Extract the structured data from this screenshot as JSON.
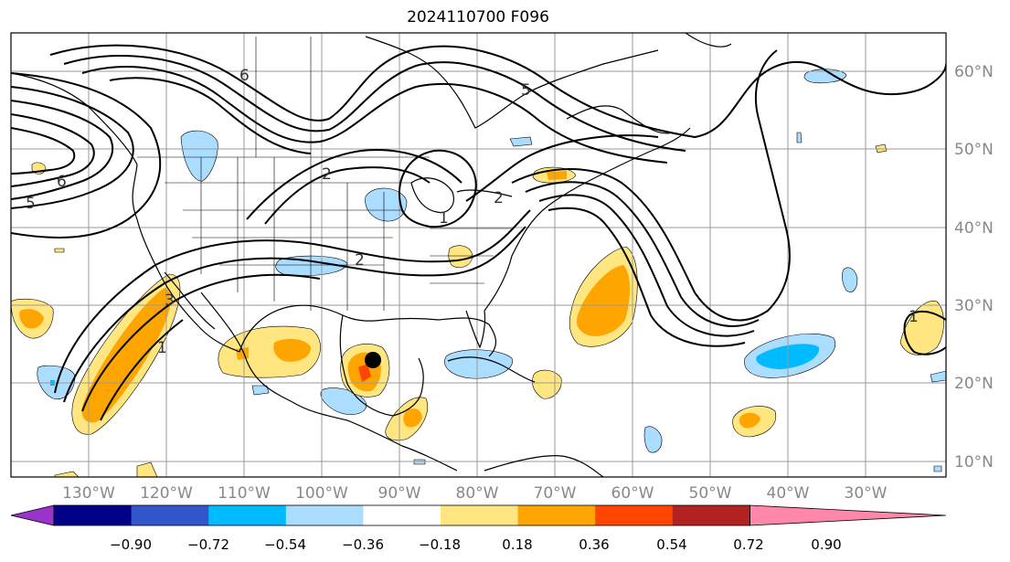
{
  "title": "2024110700 F096",
  "lat_labels": [
    "60°N",
    "50°N",
    "40°N",
    "30°N",
    "20°N",
    "10°N"
  ],
  "lon_labels": [
    "130°W",
    "120°W",
    "110°W",
    "100°W",
    "90°W",
    "80°W",
    "70°W",
    "60°W",
    "50°W",
    "40°W",
    "30°W"
  ],
  "colorbar": {
    "colors": [
      "#9933cc",
      "#000088",
      "#3355cc",
      "#00bbff",
      "#aaddff",
      "#ffffff",
      "#ffe680",
      "#ffa500",
      "#ff4500",
      "#b22222",
      "#ff88aa"
    ],
    "tick_labels": [
      "−0.90",
      "−0.72",
      "−0.54",
      "−0.36",
      "−0.18",
      "0.18",
      "0.36",
      "0.54",
      "0.72",
      "0.90"
    ]
  },
  "contour_labels": [
    "6",
    "5",
    "6",
    "2",
    "2",
    "2",
    "5",
    "3",
    "1",
    "1",
    "1"
  ],
  "storm_marker": {
    "lon": -93.3,
    "lat": 22.8
  }
}
